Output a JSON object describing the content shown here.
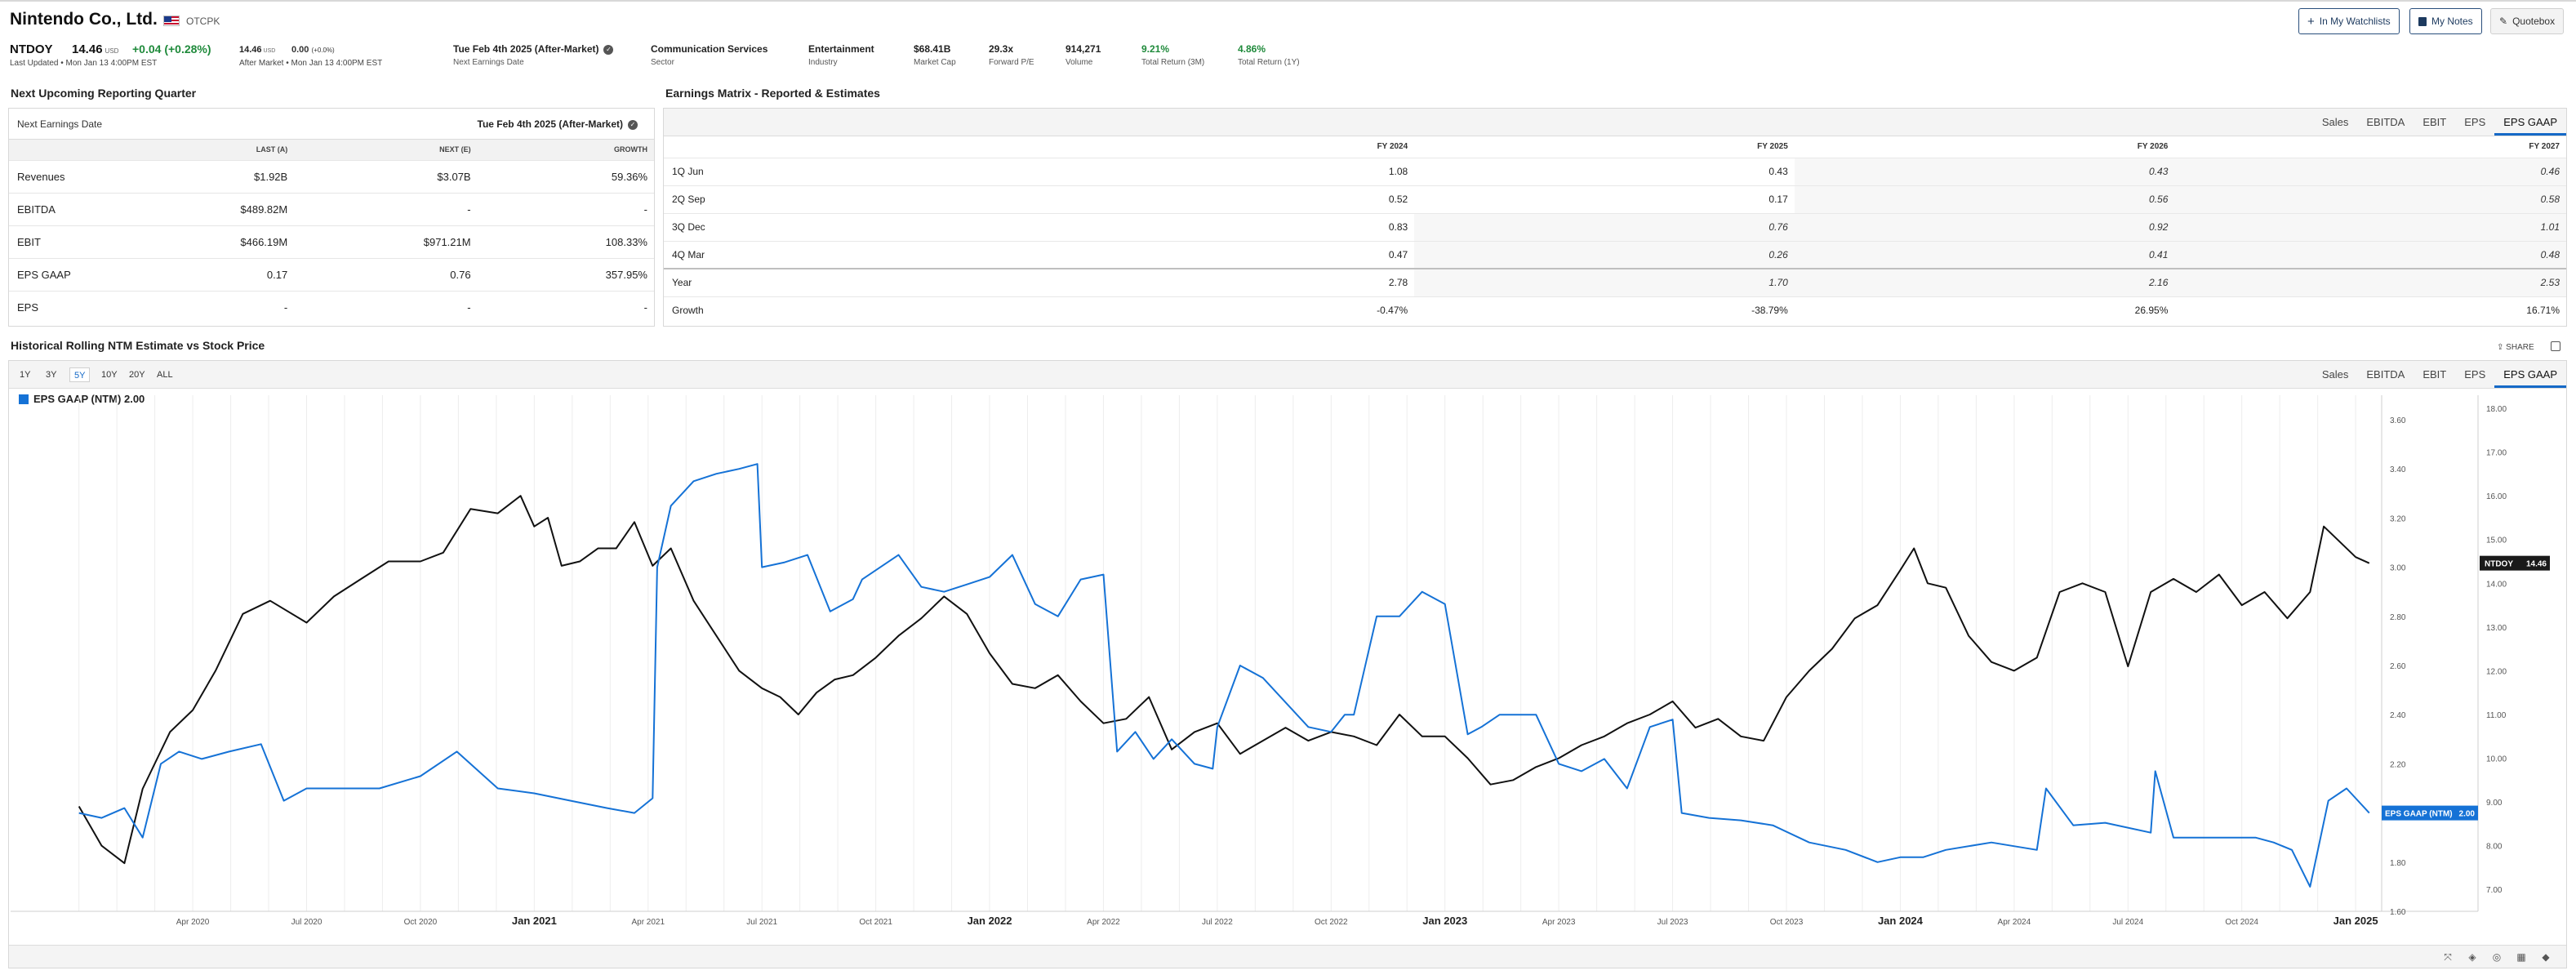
{
  "header": {
    "company": "Nintendo Co., Ltd.",
    "exchange": "OTCPK",
    "ticker": "NTDOY",
    "price": "14.46",
    "currency": "USD",
    "change": "+0.04",
    "change_pct": "(+0.28%)",
    "last_updated": "Last Updated • Mon Jan 13 4:00PM EST",
    "after_market_price": "14.46",
    "after_market_currency": "USD",
    "after_market_change": "0.00",
    "after_market_change_pct": "(+0.0%)",
    "after_market_time": "After Market • Mon Jan 13 4:00PM EST",
    "stats": [
      {
        "value": "Tue Feb 4th 2025 (After-Market)",
        "label": "Next Earnings Date"
      },
      {
        "value": "Communication Services",
        "label": "Sector"
      },
      {
        "value": "Entertainment",
        "label": "Industry"
      },
      {
        "value": "$68.41B",
        "label": "Market Cap"
      },
      {
        "value": "29.3x",
        "label": "Forward P/E"
      },
      {
        "value": "914,271",
        "label": "Volume"
      },
      {
        "value": "9.21%",
        "label": "Total Return (3M)"
      },
      {
        "value": "4.86%",
        "label": "Total Return (1Y)"
      }
    ],
    "buttons": {
      "watchlists": "In My Watchlists",
      "notes": "My Notes",
      "quotebox": "Quotebox"
    }
  },
  "next_quarter": {
    "title": "Next Upcoming Reporting Quarter",
    "date_label": "Next Earnings Date",
    "date_value": "Tue Feb 4th 2025 (After-Market)",
    "columns": [
      "",
      "LAST (A)",
      "NEXT (E)",
      "GROWTH"
    ],
    "rows": [
      {
        "name": "Revenues",
        "last": "$1.92B",
        "next": "$3.07B",
        "growth": "59.36%"
      },
      {
        "name": "EBITDA",
        "last": "$489.82M",
        "next": "-",
        "growth": "-"
      },
      {
        "name": "EBIT",
        "last": "$466.19M",
        "next": "$971.21M",
        "growth": "108.33%"
      },
      {
        "name": "EPS GAAP",
        "last": "0.17",
        "next": "0.76",
        "growth": "357.95%"
      },
      {
        "name": "EPS",
        "last": "-",
        "next": "-",
        "growth": "-"
      }
    ]
  },
  "matrix": {
    "title": "Earnings Matrix - Reported & Estimates",
    "tabs": [
      "Sales",
      "EBITDA",
      "EBIT",
      "EPS",
      "EPS GAAP"
    ],
    "active_tab": "EPS GAAP",
    "columns": [
      "",
      "FY 2024",
      "FY 2025",
      "FY 2026",
      "FY 2027"
    ],
    "rows": [
      {
        "name": "1Q Jun",
        "v": [
          "1.08",
          "0.43",
          "0.43",
          "0.46"
        ]
      },
      {
        "name": "2Q Sep",
        "v": [
          "0.52",
          "0.17",
          "0.56",
          "0.58"
        ]
      },
      {
        "name": "3Q Dec",
        "v": [
          "0.83",
          "0.76",
          "0.92",
          "1.01"
        ]
      },
      {
        "name": "4Q Mar",
        "v": [
          "0.47",
          "0.26",
          "0.41",
          "0.48"
        ]
      },
      {
        "name": "Year",
        "v": [
          "2.78",
          "1.70",
          "2.16",
          "2.53"
        ]
      },
      {
        "name": "Growth",
        "v": [
          "-0.47%",
          "-38.79%",
          "26.95%",
          "16.71%"
        ]
      }
    ]
  },
  "chart_section": {
    "title": "Historical Rolling NTM Estimate vs Stock Price",
    "share": "SHARE",
    "ranges": [
      "1Y",
      "3Y",
      "5Y",
      "10Y",
      "20Y",
      "ALL"
    ],
    "active_range": "5Y",
    "tabs": [
      "Sales",
      "EBITDA",
      "EBIT",
      "EPS",
      "EPS GAAP"
    ],
    "active_tab": "EPS GAAP",
    "legend": "EPS GAAP (NTM) 2.00",
    "price_tag": {
      "label": "NTDOY",
      "value": "14.46"
    },
    "eps_tag": {
      "label": "EPS GAAP (NTM)",
      "value": "2.00"
    }
  },
  "chart_data": {
    "type": "line",
    "x_tick_labels": [
      "Apr 2020",
      "Jul 2020",
      "Oct 2020",
      "Jan 2021",
      "Apr 2021",
      "Jul 2021",
      "Oct 2021",
      "Jan 2022",
      "Apr 2022",
      "Jul 2022",
      "Oct 2022",
      "Jan 2023",
      "Apr 2023",
      "Jul 2023",
      "Oct 2023",
      "Jan 2024",
      "Apr 2024",
      "Jul 2024",
      "Oct 2024",
      "Jan 2025"
    ],
    "eps_axis_ticks": [
      "1.60",
      "1.80",
      "2.00",
      "2.20",
      "2.40",
      "2.60",
      "2.80",
      "3.00",
      "3.20",
      "3.40",
      "3.60"
    ],
    "price_axis_ticks": [
      "7.00",
      "8.00",
      "9.00",
      "10.00",
      "11.00",
      "12.00",
      "13.00",
      "14.00",
      "15.00",
      "16.00",
      "17.00",
      "18.00"
    ],
    "eps_ylim": [
      1.6,
      3.6
    ],
    "price_ylim": [
      6.5,
      18.3
    ],
    "series": [
      {
        "name": "NTDOY",
        "axis": "price",
        "color": "#111111",
        "x": [
          2020.0,
          2020.05,
          2020.1,
          2020.14,
          2020.2,
          2020.25,
          2020.3,
          2020.36,
          2020.42,
          2020.5,
          2020.56,
          2020.62,
          2020.68,
          2020.75,
          2020.8,
          2020.86,
          2020.92,
          2020.97,
          2021.0,
          2021.03,
          2021.06,
          2021.1,
          2021.14,
          2021.18,
          2021.22,
          2021.26,
          2021.3,
          2021.35,
          2021.4,
          2021.45,
          2021.5,
          2021.54,
          2021.58,
          2021.62,
          2021.66,
          2021.7,
          2021.75,
          2021.8,
          2021.85,
          2021.9,
          2021.95,
          2022.0,
          2022.05,
          2022.1,
          2022.15,
          2022.2,
          2022.25,
          2022.3,
          2022.35,
          2022.4,
          2022.45,
          2022.5,
          2022.55,
          2022.6,
          2022.65,
          2022.7,
          2022.75,
          2022.8,
          2022.85,
          2022.9,
          2022.95,
          2023.0,
          2023.05,
          2023.1,
          2023.15,
          2023.2,
          2023.25,
          2023.3,
          2023.35,
          2023.4,
          2023.45,
          2023.5,
          2023.55,
          2023.6,
          2023.65,
          2023.7,
          2023.75,
          2023.8,
          2023.85,
          2023.9,
          2023.95,
          2024.0,
          2024.03,
          2024.06,
          2024.1,
          2024.15,
          2024.2,
          2024.25,
          2024.3,
          2024.35,
          2024.4,
          2024.45,
          2024.5,
          2024.55,
          2024.6,
          2024.65,
          2024.7,
          2024.75,
          2024.8,
          2024.85,
          2024.9,
          2024.93,
          2024.96,
          2025.0,
          2025.03
        ],
        "values": [
          8.9,
          8.0,
          7.6,
          9.3,
          10.6,
          11.1,
          12.0,
          13.3,
          13.6,
          13.1,
          13.7,
          14.1,
          14.5,
          14.5,
          14.7,
          15.7,
          15.6,
          16.0,
          15.3,
          15.5,
          14.4,
          14.5,
          14.8,
          14.8,
          15.4,
          14.4,
          14.8,
          13.6,
          12.8,
          12.0,
          11.6,
          11.4,
          11.0,
          11.5,
          11.8,
          11.9,
          12.3,
          12.8,
          13.2,
          13.7,
          13.3,
          12.4,
          11.7,
          11.6,
          11.9,
          11.3,
          10.8,
          10.9,
          11.4,
          10.2,
          10.6,
          10.8,
          10.1,
          10.4,
          10.7,
          10.4,
          10.6,
          10.5,
          10.3,
          11.0,
          10.5,
          10.5,
          10.0,
          9.4,
          9.5,
          9.8,
          10.0,
          10.3,
          10.5,
          10.8,
          11.0,
          11.3,
          10.7,
          10.9,
          10.5,
          10.4,
          11.4,
          12.0,
          12.5,
          13.2,
          13.5,
          14.3,
          14.8,
          14.0,
          13.9,
          12.8,
          12.2,
          12.0,
          12.3,
          13.8,
          14.0,
          13.8,
          12.1,
          13.8,
          14.1,
          13.8,
          14.2,
          13.5,
          13.8,
          13.2,
          13.8,
          15.3,
          15.0,
          14.6,
          14.46
        ]
      },
      {
        "name": "EPS GAAP (NTM)",
        "axis": "eps",
        "color": "#1572d6",
        "x": [
          2020.0,
          2020.05,
          2020.1,
          2020.14,
          2020.18,
          2020.22,
          2020.27,
          2020.33,
          2020.4,
          2020.45,
          2020.5,
          2020.58,
          2020.66,
          2020.75,
          2020.83,
          2020.92,
          2021.0,
          2021.08,
          2021.16,
          2021.22,
          2021.26,
          2021.27,
          2021.3,
          2021.35,
          2021.4,
          2021.45,
          2021.49,
          2021.5,
          2021.55,
          2021.6,
          2021.65,
          2021.7,
          2021.72,
          2021.76,
          2021.8,
          2021.85,
          2021.9,
          2021.95,
          2022.0,
          2022.05,
          2022.1,
          2022.15,
          2022.2,
          2022.25,
          2022.28,
          2022.32,
          2022.36,
          2022.4,
          2022.45,
          2022.49,
          2022.5,
          2022.55,
          2022.6,
          2022.7,
          2022.75,
          2022.78,
          2022.8,
          2022.85,
          2022.9,
          2022.95,
          2023.0,
          2023.05,
          2023.08,
          2023.12,
          2023.16,
          2023.2,
          2023.25,
          2023.3,
          2023.35,
          2023.4,
          2023.45,
          2023.5,
          2023.52,
          2023.58,
          2023.65,
          2023.72,
          2023.8,
          2023.88,
          2023.95,
          2024.0,
          2024.05,
          2024.1,
          2024.2,
          2024.3,
          2024.32,
          2024.38,
          2024.45,
          2024.55,
          2024.56,
          2024.6,
          2024.7,
          2024.78,
          2024.82,
          2024.86,
          2024.9,
          2024.94,
          2024.98,
          2025.0,
          2025.03
        ],
        "values": [
          2.0,
          1.98,
          2.02,
          1.9,
          2.2,
          2.25,
          2.22,
          2.25,
          2.28,
          2.05,
          2.1,
          2.1,
          2.1,
          2.15,
          2.25,
          2.1,
          2.08,
          2.05,
          2.02,
          2.0,
          2.06,
          3.0,
          3.25,
          3.35,
          3.38,
          3.4,
          3.42,
          3.0,
          3.02,
          3.05,
          2.82,
          2.87,
          2.95,
          3.0,
          3.05,
          2.92,
          2.9,
          2.93,
          2.96,
          3.05,
          2.85,
          2.8,
          2.95,
          2.97,
          2.25,
          2.33,
          2.22,
          2.3,
          2.2,
          2.18,
          2.35,
          2.6,
          2.55,
          2.35,
          2.33,
          2.4,
          2.4,
          2.8,
          2.8,
          2.9,
          2.85,
          2.32,
          2.35,
          2.4,
          2.4,
          2.4,
          2.2,
          2.17,
          2.22,
          2.1,
          2.35,
          2.38,
          2.0,
          1.98,
          1.97,
          1.95,
          1.88,
          1.85,
          1.8,
          1.82,
          1.82,
          1.85,
          1.88,
          1.85,
          2.1,
          1.95,
          1.96,
          1.92,
          2.17,
          1.9,
          1.9,
          1.9,
          1.88,
          1.85,
          1.7,
          2.05,
          2.1,
          2.06,
          2.0
        ]
      }
    ]
  }
}
